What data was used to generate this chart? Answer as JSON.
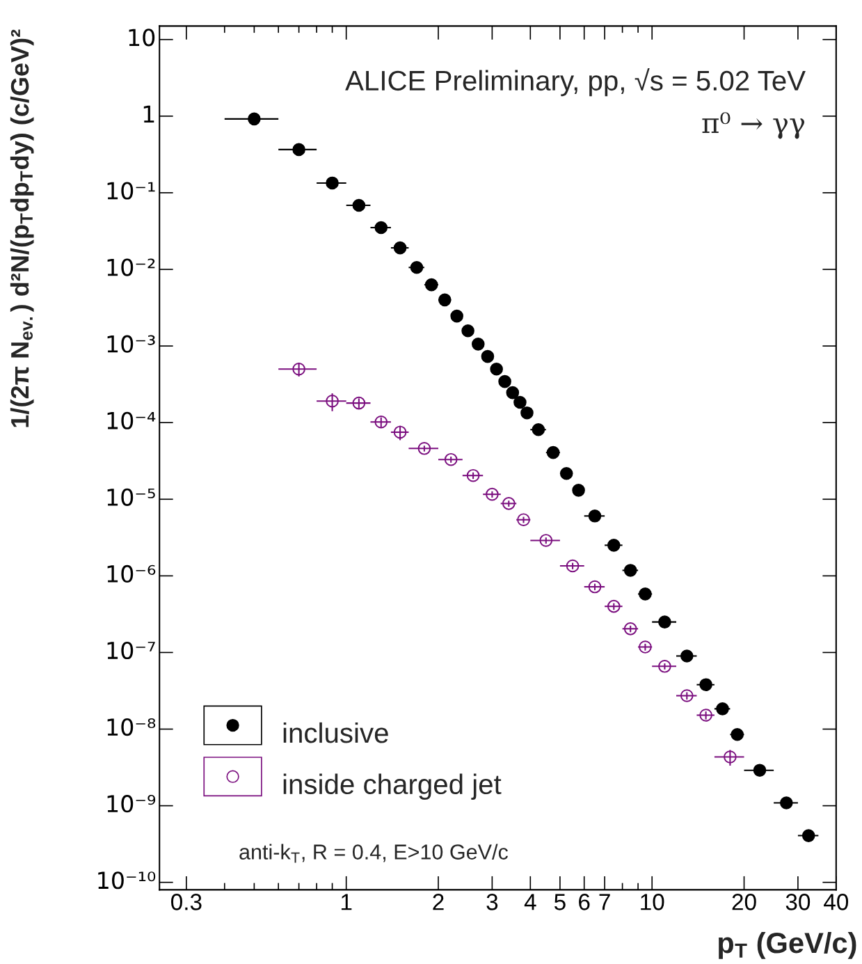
{
  "chart_data": {
    "type": "scatter",
    "title": "ALICE Preliminary, pp, √s = 5.02 TeV",
    "subtitle": "π⁰ → γγ",
    "xlabel": "p$_{T}$ (GeV/c)",
    "ylabel": "1/(2π N$_{ev.}$) d²N/(p$_{T}$dp$_{T}$dy) (c/GeV)²",
    "annotations": [
      "anti-k$_{T}$, R = 0.4, E>10 GeV/c"
    ],
    "log": "xy",
    "grid": false,
    "legend": "bottom left",
    "xlim": [
      0.245,
      40
    ],
    "ylim": [
      8e-11,
      15
    ],
    "xticks": [
      0.3,
      {
        "value": 0.4,
        "label": null
      },
      {
        "value": 0.5,
        "label": null
      },
      {
        "value": 0.6,
        "label": null
      },
      {
        "value": 0.7,
        "label": null
      },
      {
        "value": 0.8,
        "label": null
      },
      {
        "value": 0.9,
        "label": null
      },
      1,
      2,
      3,
      4,
      5,
      6,
      7,
      {
        "value": 8,
        "label": null
      },
      {
        "value": 9,
        "label": null
      },
      10,
      20,
      30,
      40
    ],
    "yticks": [
      {
        "value": 1e-10,
        "label": "10⁻¹⁰"
      },
      {
        "value": 1e-09,
        "label": "10⁻⁹"
      },
      {
        "value": 1e-08,
        "label": "10⁻⁸"
      },
      {
        "value": 1e-07,
        "label": "10⁻⁷"
      },
      {
        "value": 1e-06,
        "label": "10⁻⁶"
      },
      {
        "value": 1e-05,
        "label": "10⁻⁵"
      },
      {
        "value": 0.0001,
        "label": "10⁻⁴"
      },
      {
        "value": 0.001,
        "label": "10⁻³"
      },
      {
        "value": 0.01,
        "label": "10⁻²"
      },
      {
        "value": 0.1,
        "label": "10⁻¹"
      },
      1,
      10
    ],
    "series": [
      {
        "name": "inclusive",
        "color": "#000000",
        "marker": "circle",
        "x": [
          0.5,
          0.7,
          0.9,
          1.1,
          1.3,
          1.5,
          1.7,
          1.9,
          2.1,
          2.3,
          2.5,
          2.7,
          2.9,
          3.1,
          3.3,
          3.5,
          3.7,
          3.9,
          4.25,
          4.75,
          5.25,
          5.75,
          6.5,
          7.5,
          8.5,
          9.5,
          11,
          13,
          15,
          17,
          19,
          22.5,
          27.5,
          32.5
        ],
        "values": [
          0.92,
          0.366,
          0.134,
          0.0686,
          0.0351,
          0.0191,
          0.0106,
          0.0063,
          0.004,
          0.00246,
          0.00158,
          0.00106,
          0.00073,
          0.0005,
          0.000344,
          0.000246,
          0.000184,
          0.000134,
          8.1e-05,
          4.07e-05,
          2.17e-05,
          1.31e-05,
          6.05e-06,
          2.51e-06,
          1.18e-06,
          5.8e-07,
          2.5e-07,
          9e-08,
          3.8e-08,
          1.84e-08,
          8.5e-09,
          2.9e-09,
          1.09e-09,
          4.07e-10
        ],
        "xerrors": [
          [
            0.4,
            0.6
          ],
          [
            0.6,
            0.8
          ],
          [
            0.8,
            1.0
          ],
          [
            1.0,
            1.2
          ],
          [
            1.2,
            1.4
          ],
          [
            1.4,
            1.6
          ],
          [
            1.6,
            1.8
          ],
          [
            1.8,
            2.0
          ],
          [
            2.0,
            2.2
          ],
          [
            2.2,
            2.4
          ],
          [
            2.4,
            2.6
          ],
          [
            2.6,
            2.8
          ],
          [
            2.8,
            3.0
          ],
          [
            3.0,
            3.2
          ],
          [
            3.2,
            3.4
          ],
          [
            3.4,
            3.6
          ],
          null,
          null,
          [
            4.0,
            4.5
          ],
          [
            4.5,
            5.0
          ],
          [
            5.0,
            5.5
          ],
          [
            5.5,
            6.0
          ],
          [
            6,
            7
          ],
          [
            7,
            8
          ],
          [
            8,
            9
          ],
          [
            9,
            10
          ],
          [
            10,
            12
          ],
          [
            12,
            14
          ],
          [
            14,
            16
          ],
          [
            16,
            18
          ],
          [
            18,
            20
          ],
          [
            20,
            25
          ],
          [
            25,
            30
          ],
          [
            30,
            35
          ]
        ],
        "errors": [
          0.07,
          0.03,
          0.008,
          0.004,
          0.002,
          0.0011,
          0.0006,
          0.0004,
          0.00024,
          0.00015,
          0.0001,
          6e-05,
          4e-05,
          3e-05,
          2e-05,
          1.5e-05,
          1.1e-05,
          8e-06,
          5e-06,
          2.5e-06,
          1.3e-06,
          8e-07,
          3.6e-07,
          1.5e-07,
          7e-08,
          3.5e-08,
          1.5e-08,
          5.4e-09,
          2.3e-09,
          1.1e-09,
          5e-10,
          1.8e-10,
          7e-11,
          2.5e-11
        ]
      },
      {
        "name": "inside charged jet",
        "color": "#7b0f7f",
        "marker": "circle",
        "x": [
          0.7,
          0.9,
          1.1,
          1.3,
          1.5,
          1.8,
          2.2,
          2.6,
          3.0,
          3.4,
          3.8,
          4.5,
          5.5,
          6.5,
          7.5,
          8.5,
          9.5,
          11,
          13,
          15,
          18
        ],
        "values": [
          0.0005,
          0.000191,
          0.00018,
          0.000102,
          7.5e-05,
          4.6e-05,
          3.3e-05,
          2.04e-05,
          1.16e-05,
          8.8e-06,
          5.4e-06,
          2.9e-06,
          1.35e-06,
          7.2e-07,
          4e-07,
          2.04e-07,
          1.18e-07,
          6.6e-08,
          2.73e-08,
          1.52e-08,
          4.33e-09
        ],
        "xerrors": [
          [
            0.6,
            0.8
          ],
          [
            0.8,
            1.0
          ],
          [
            1.0,
            1.2
          ],
          [
            1.2,
            1.4
          ],
          [
            1.4,
            1.6
          ],
          [
            1.6,
            2.0
          ],
          [
            2.0,
            2.4
          ],
          [
            2.4,
            2.8
          ],
          [
            2.8,
            3.2
          ],
          [
            3.2,
            3.6
          ],
          [
            3.6,
            4.0
          ],
          [
            4,
            5
          ],
          [
            5,
            6
          ],
          [
            6,
            7
          ],
          [
            7,
            8
          ],
          [
            8,
            9
          ],
          [
            9,
            10
          ],
          [
            10,
            12
          ],
          [
            12,
            14
          ],
          [
            14,
            16
          ],
          [
            16,
            20
          ]
        ],
        "errors": [
          0.0001,
          5e-05,
          2.7e-05,
          1.5e-05,
          1.6e-05,
          4e-06,
          3e-06,
          2e-06,
          1.1e-06,
          8e-07,
          5e-07,
          2.7e-07,
          1.3e-07,
          7e-08,
          4e-08,
          2e-08,
          1.2e-08,
          6e-09,
          3e-09,
          1.8e-09,
          1e-09
        ]
      }
    ]
  }
}
